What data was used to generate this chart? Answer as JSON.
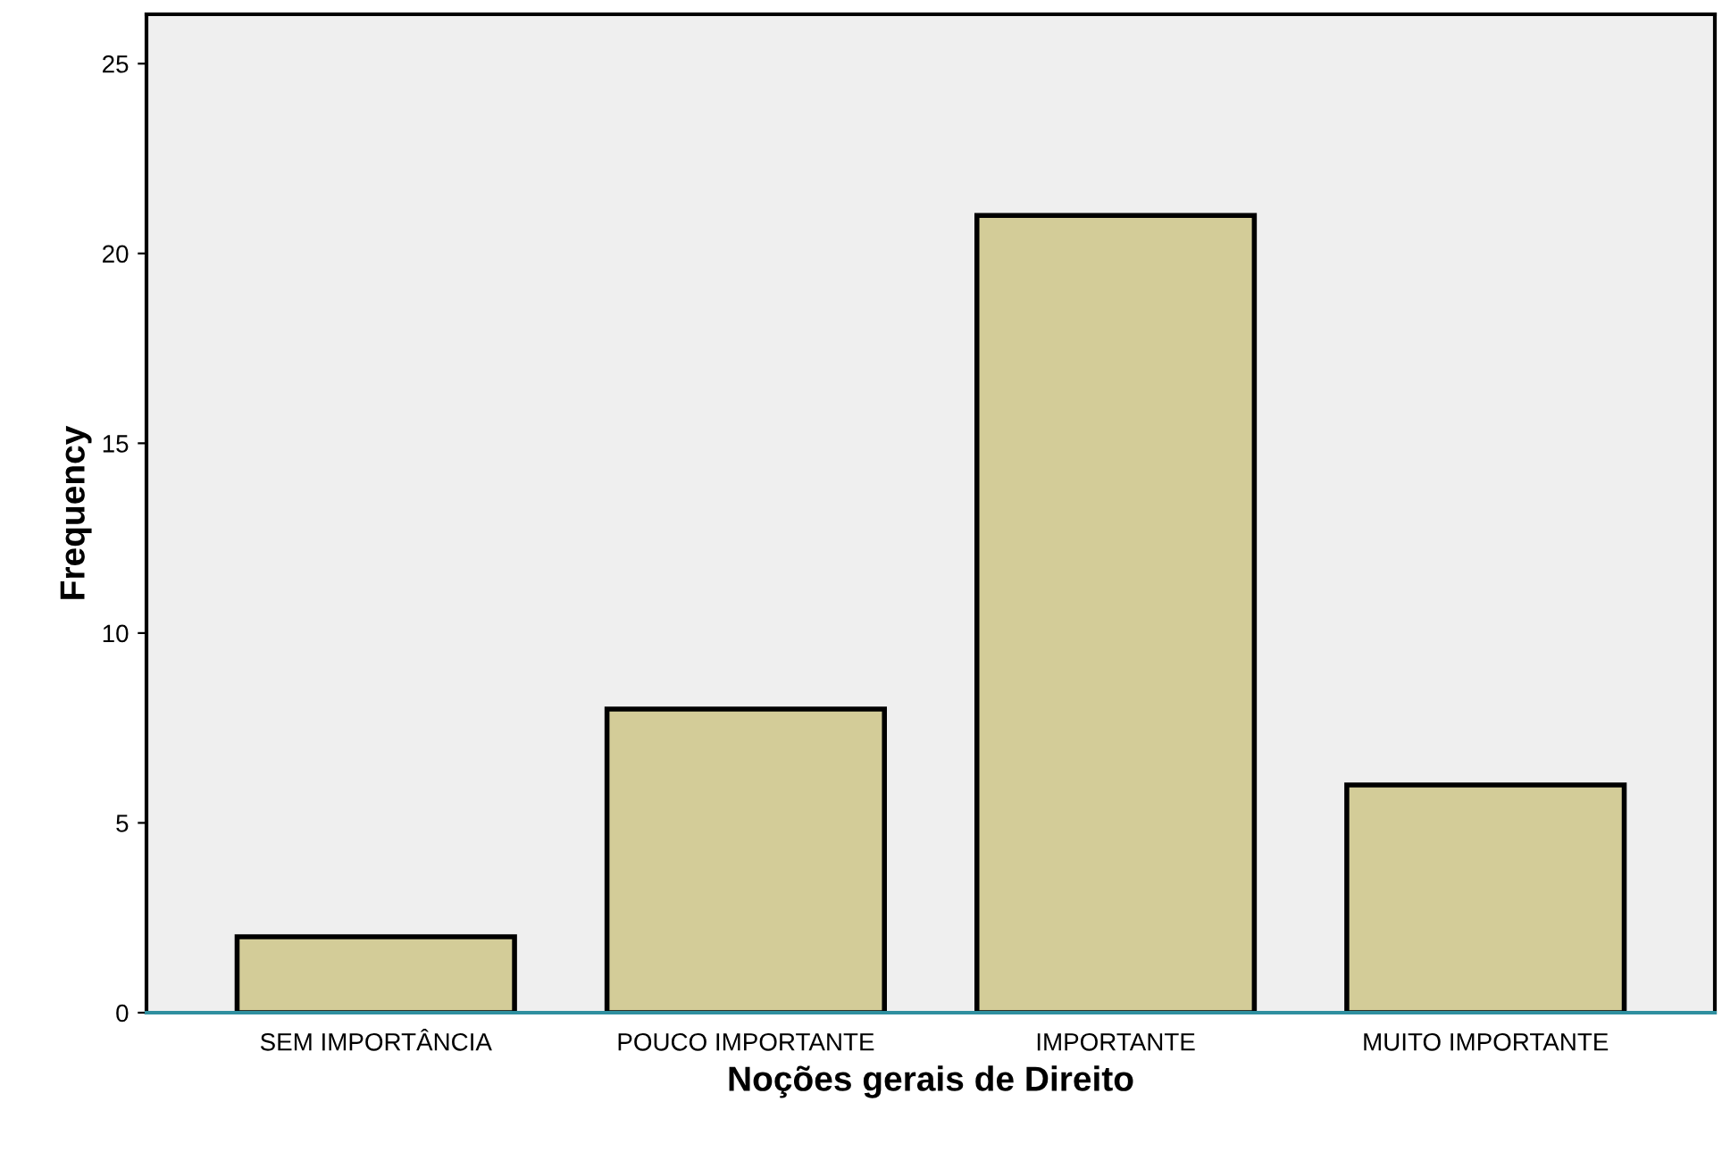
{
  "chart_data": {
    "type": "bar",
    "xlabel": "Noções gerais de Direito",
    "ylabel": "Frequency",
    "categories": [
      "SEM IMPORTÂNCIA",
      "POUCO IMPORTANTE",
      "IMPORTANTE",
      "MUITO IMPORTANTE"
    ],
    "values": [
      2,
      8,
      21,
      6
    ],
    "color": "#d3cc98",
    "ylim": [
      0,
      26.3
    ],
    "yticks": [
      0,
      5,
      10,
      15,
      20,
      25
    ],
    "grid": false,
    "legend": false
  }
}
